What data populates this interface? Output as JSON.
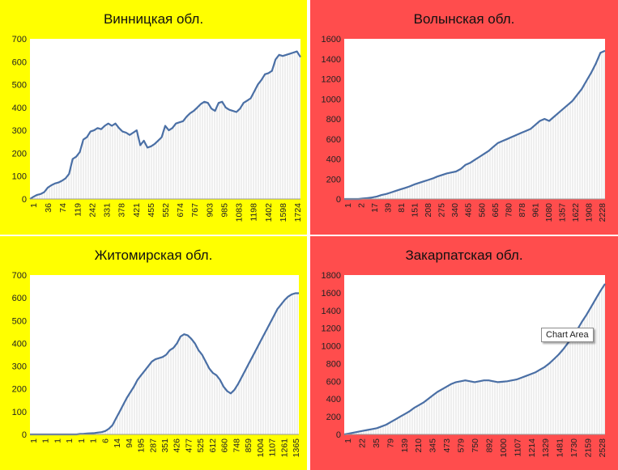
{
  "tooltip": "Chart Area",
  "chart_data": [
    {
      "type": "area",
      "title": "Винницкая обл.",
      "background": "#ffff00",
      "line_color": "#4a6fa5",
      "ylim": [
        0,
        700
      ],
      "yticks": [
        0,
        100,
        200,
        300,
        400,
        500,
        600,
        700
      ],
      "xticks": [
        "1",
        "36",
        "74",
        "119",
        "242",
        "331",
        "378",
        "421",
        "455",
        "552",
        "674",
        "767",
        "903",
        "985",
        "1083",
        "1198",
        "1402",
        "1598",
        "1724"
      ],
      "values": [
        0,
        10,
        18,
        22,
        30,
        50,
        60,
        68,
        72,
        80,
        90,
        110,
        175,
        185,
        205,
        260,
        270,
        295,
        300,
        310,
        305,
        320,
        330,
        320,
        330,
        310,
        295,
        290,
        280,
        290,
        300,
        235,
        255,
        225,
        230,
        240,
        255,
        270,
        320,
        300,
        310,
        330,
        335,
        340,
        360,
        375,
        385,
        400,
        415,
        425,
        420,
        395,
        385,
        420,
        425,
        400,
        390,
        385,
        380,
        395,
        420,
        430,
        440,
        470,
        500,
        520,
        545,
        550,
        560,
        610,
        630,
        625,
        630,
        635,
        640,
        645,
        620
      ]
    },
    {
      "type": "area",
      "title": "Волынская обл.",
      "background": "#ff4d4d",
      "line_color": "#4a6fa5",
      "ylim": [
        0,
        1600
      ],
      "yticks": [
        0,
        200,
        400,
        600,
        800,
        1000,
        1200,
        1400,
        1600
      ],
      "xticks": [
        "1",
        "2",
        "17",
        "39",
        "81",
        "151",
        "208",
        "275",
        "340",
        "465",
        "560",
        "665",
        "780",
        "878",
        "961",
        "1080",
        "1357",
        "1622",
        "1908",
        "2228"
      ],
      "values": [
        0,
        0,
        0,
        0,
        5,
        10,
        15,
        25,
        40,
        50,
        65,
        80,
        95,
        110,
        125,
        145,
        160,
        175,
        190,
        205,
        225,
        240,
        255,
        265,
        275,
        300,
        340,
        360,
        390,
        420,
        450,
        480,
        520,
        560,
        580,
        600,
        620,
        640,
        660,
        680,
        700,
        740,
        780,
        800,
        780,
        820,
        860,
        900,
        940,
        980,
        1040,
        1100,
        1180,
        1260,
        1350,
        1460,
        1480
      ]
    },
    {
      "type": "area",
      "title": "Житомирская обл.",
      "background": "#ffff00",
      "line_color": "#4a6fa5",
      "ylim": [
        0,
        700
      ],
      "yticks": [
        0,
        100,
        200,
        300,
        400,
        500,
        600,
        700
      ],
      "xticks": [
        "1",
        "1",
        "1",
        "1",
        "1",
        "1",
        "6",
        "14",
        "94",
        "195",
        "287",
        "351",
        "426",
        "477",
        "525",
        "612",
        "660",
        "748",
        "859",
        "1004",
        "1107",
        "1261",
        "1365"
      ],
      "values": [
        0,
        0,
        0,
        0,
        0,
        0,
        0,
        0,
        0,
        0,
        0,
        0,
        0,
        0,
        2,
        3,
        4,
        5,
        6,
        8,
        10,
        15,
        25,
        40,
        70,
        100,
        130,
        160,
        185,
        210,
        240,
        260,
        280,
        300,
        320,
        330,
        335,
        340,
        350,
        370,
        380,
        400,
        430,
        440,
        435,
        420,
        400,
        370,
        350,
        320,
        290,
        270,
        260,
        240,
        210,
        190,
        180,
        195,
        220,
        250,
        280,
        310,
        340,
        370,
        400,
        430,
        460,
        490,
        520,
        550,
        570,
        590,
        605,
        615,
        620,
        620
      ]
    },
    {
      "type": "area",
      "title": "Закарпатская обл.",
      "background": "#ff4d4d",
      "line_color": "#4a6fa5",
      "ylim": [
        0,
        1800
      ],
      "yticks": [
        0,
        200,
        400,
        600,
        800,
        1000,
        1200,
        1400,
        1600,
        1800
      ],
      "xticks": [
        "1",
        "22",
        "35",
        "79",
        "139",
        "210",
        "345",
        "473",
        "579",
        "750",
        "892",
        "1000",
        "1107",
        "1214",
        "1329",
        "1481",
        "1730",
        "2159",
        "2528"
      ],
      "values": [
        0,
        10,
        20,
        30,
        40,
        50,
        60,
        70,
        90,
        110,
        140,
        170,
        200,
        230,
        260,
        300,
        330,
        360,
        400,
        440,
        480,
        510,
        540,
        570,
        590,
        600,
        610,
        600,
        590,
        600,
        610,
        610,
        600,
        590,
        595,
        600,
        610,
        620,
        640,
        660,
        680,
        700,
        730,
        760,
        800,
        850,
        900,
        960,
        1030,
        1100,
        1180,
        1270,
        1350,
        1440,
        1530,
        1620,
        1700
      ]
    }
  ]
}
